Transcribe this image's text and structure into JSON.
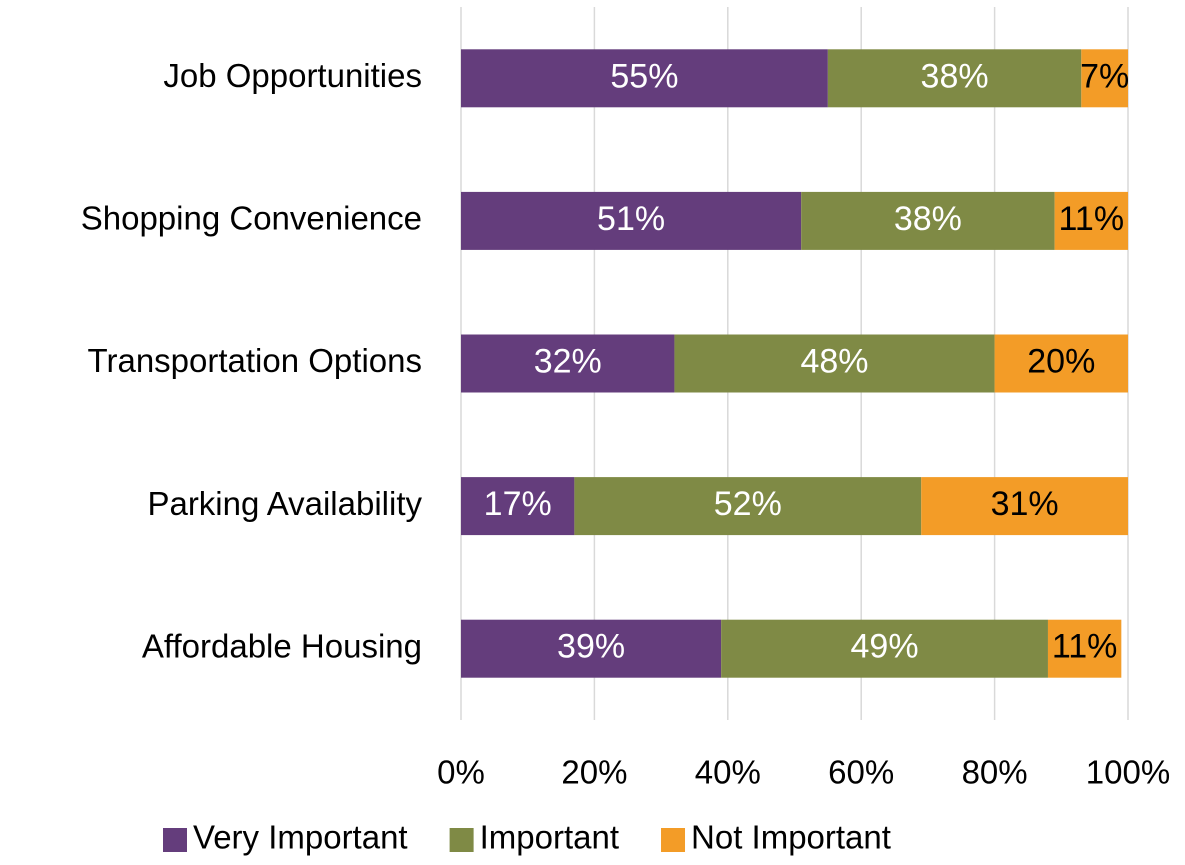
{
  "chart_data": {
    "type": "stacked_barh",
    "categories": [
      "Job Opportunities",
      "Shopping Convenience",
      "Transportation Options",
      "Parking Availability",
      "Affordable Housing"
    ],
    "series": [
      {
        "name": "Very Important",
        "color": "#643d7c",
        "label_color": "#ffffff",
        "values": [
          55,
          51,
          32,
          17,
          39
        ],
        "value_labels": [
          "55%",
          "51%",
          "32%",
          "17%",
          "39%"
        ]
      },
      {
        "name": "Important",
        "color": "#7f8a45",
        "label_color": "#ffffff",
        "values": [
          38,
          38,
          48,
          52,
          49
        ],
        "value_labels": [
          "38%",
          "38%",
          "48%",
          "52%",
          "49%"
        ]
      },
      {
        "name": "Not Important",
        "color": "#f39c27",
        "label_color": "#000000",
        "values": [
          7,
          11,
          20,
          31,
          11
        ],
        "value_labels": [
          "7%",
          "11%",
          "20%",
          "31%",
          "11%"
        ]
      }
    ],
    "xlim": [
      0,
      100
    ],
    "xticks": [
      {
        "value": 0,
        "label": "0%"
      },
      {
        "value": 20,
        "label": "20%"
      },
      {
        "value": 40,
        "label": "40%"
      },
      {
        "value": 60,
        "label": "60%"
      },
      {
        "value": 80,
        "label": "80%"
      },
      {
        "value": 100,
        "label": "100%"
      }
    ],
    "grid": true,
    "legend": "bottom"
  }
}
